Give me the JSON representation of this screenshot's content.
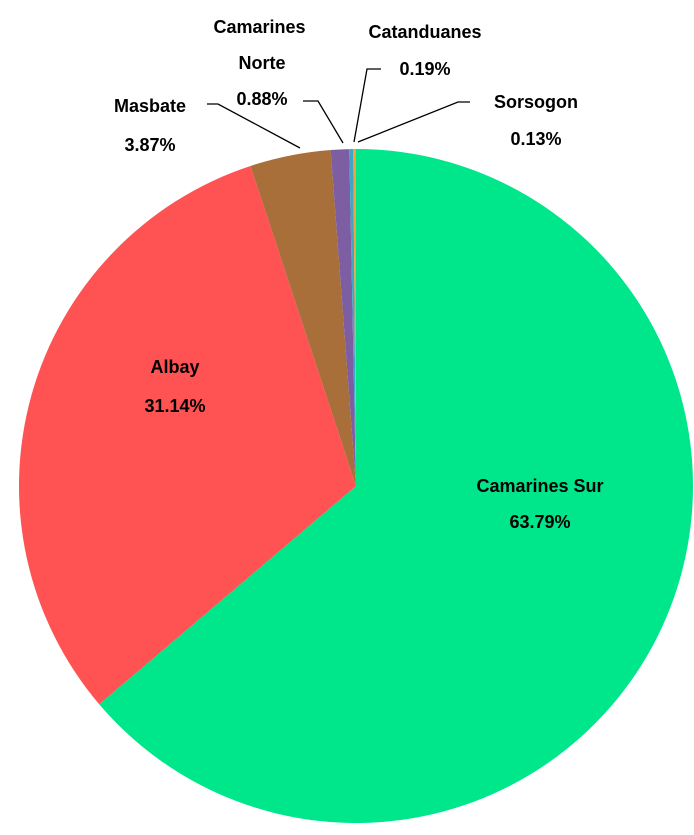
{
  "chart_data": {
    "type": "pie",
    "categories": [
      "Camarines Sur",
      "Albay",
      "Masbate",
      "Camarines Norte",
      "Catanduanes",
      "Sorsogon"
    ],
    "values": [
      63.79,
      31.14,
      3.87,
      0.88,
      0.19,
      0.13
    ],
    "value_labels": [
      "63.79%",
      "31.14%",
      "3.87%",
      "0.88%",
      "0.19%",
      "0.13%"
    ],
    "colors": [
      "#00e68a",
      "#ff5252",
      "#a86f3a",
      "#7e5ea3",
      "#3fa6c8",
      "#f5a236"
    ]
  }
}
